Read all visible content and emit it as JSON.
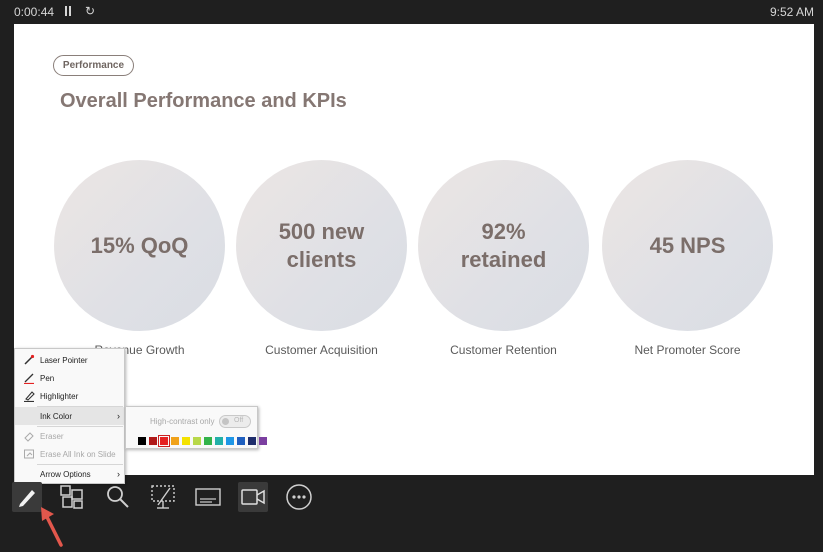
{
  "presenter": {
    "timer": "0:00:44",
    "clock": "9:52 AM"
  },
  "slide": {
    "tag": "Performance",
    "title": "Overall Performance and KPIs",
    "kpis": [
      {
        "value": "15% QoQ",
        "caption": "Revenue Growth"
      },
      {
        "value": "500 new clients",
        "caption": "Customer Acquisition"
      },
      {
        "value": "92% retained",
        "caption": "Customer Retention"
      },
      {
        "value": "45 NPS",
        "caption": "Net Promoter Score"
      }
    ]
  },
  "pointer_menu": {
    "laser_pointer": "Laser Pointer",
    "pen": "Pen",
    "highlighter": "Highlighter",
    "ink_color": "Ink Color",
    "eraser": "Eraser",
    "erase_all": "Erase All Ink on Slide",
    "arrow_options": "Arrow Options"
  },
  "ink_color_submenu": {
    "high_contrast_label": "High-contrast only",
    "high_contrast_state": "Off",
    "colors": [
      "#000000",
      "#b01919",
      "#e52222",
      "#f0a21a",
      "#f4e200",
      "#b8d84a",
      "#33b34a",
      "#22b0a8",
      "#1e96e6",
      "#1f5fbf",
      "#1e2d6b",
      "#7b3fa0"
    ],
    "selected_color_index": 2
  },
  "colors": {
    "slide_title": "#857773",
    "annotation_arrow": "#e2574c"
  }
}
